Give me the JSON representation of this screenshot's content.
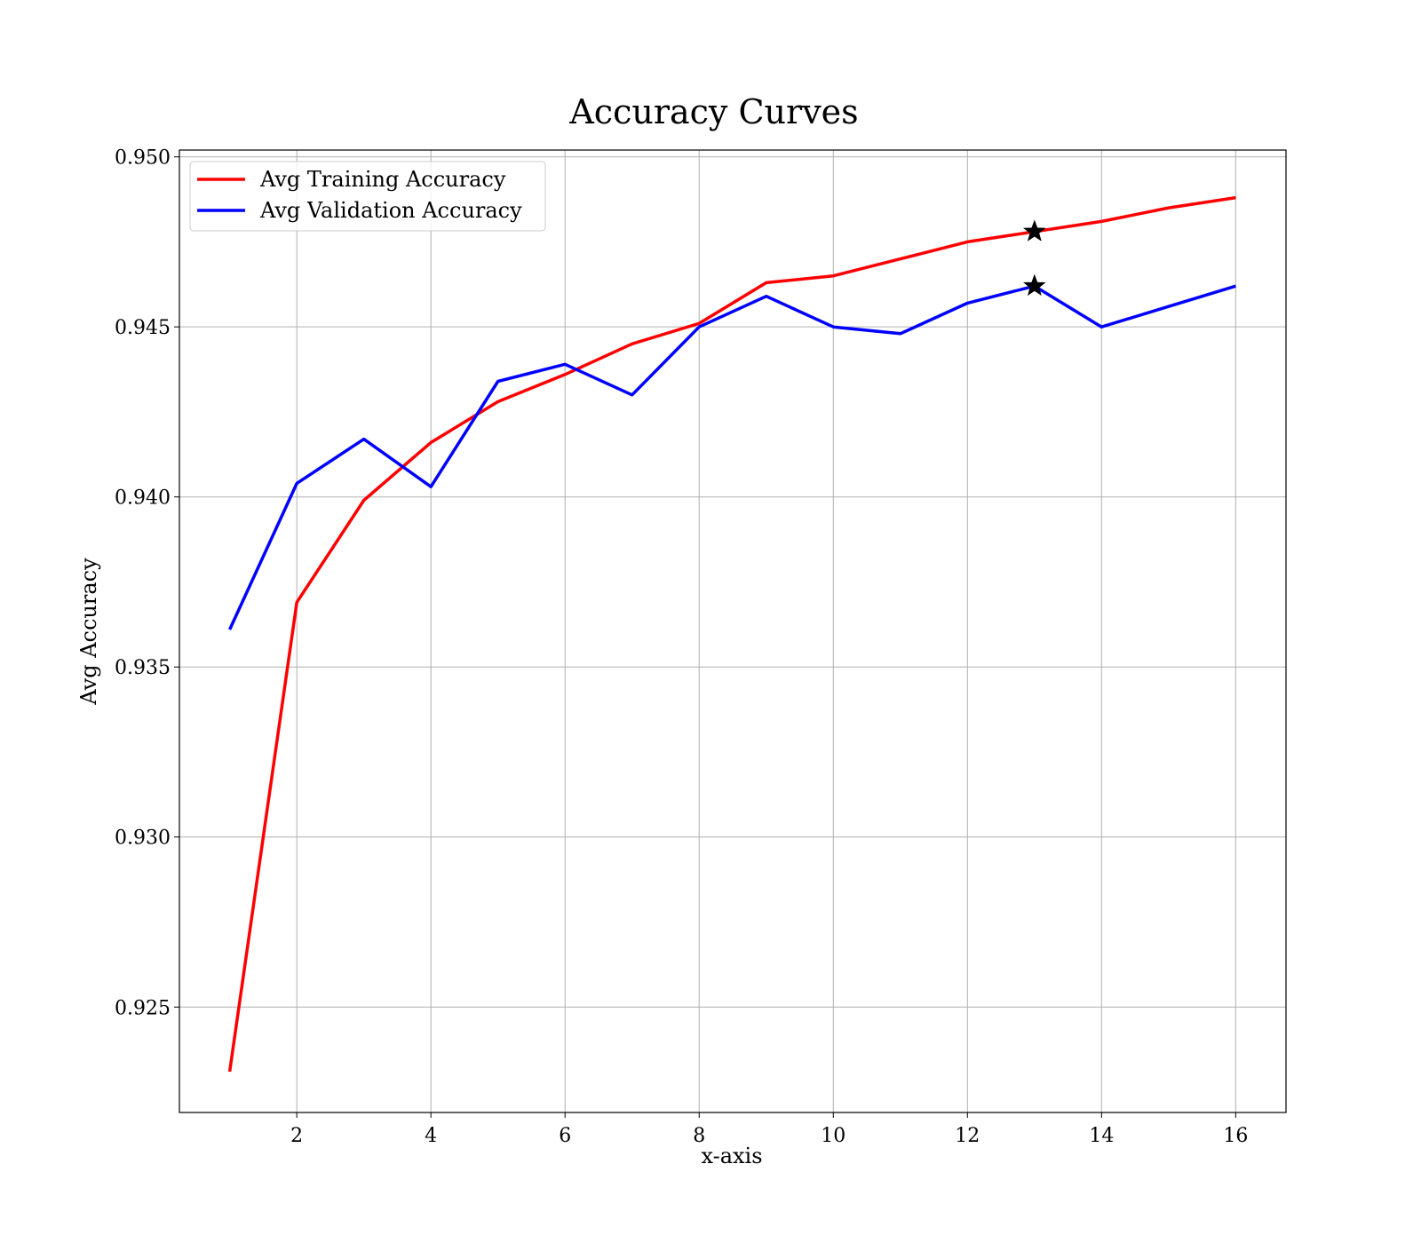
{
  "chart_data": {
    "type": "line",
    "title": "Accuracy Curves",
    "xlabel": "x-axis",
    "ylabel": "Avg Accuracy",
    "xlim": [
      0.25,
      16.75
    ],
    "ylim": [
      0.9219,
      0.9502
    ],
    "xticks": [
      2,
      4,
      6,
      8,
      10,
      12,
      14,
      16
    ],
    "xtick_labels": [
      "2",
      "4",
      "6",
      "8",
      "10",
      "12",
      "14",
      "16"
    ],
    "yticks": [
      0.925,
      0.93,
      0.935,
      0.94,
      0.945,
      0.95
    ],
    "ytick_labels": [
      "0.925",
      "0.930",
      "0.935",
      "0.940",
      "0.945",
      "0.950"
    ],
    "grid": true,
    "legend_position": "upper-left",
    "x": [
      1,
      2,
      3,
      4,
      5,
      6,
      7,
      8,
      9,
      10,
      11,
      12,
      13,
      14,
      15,
      16
    ],
    "series": [
      {
        "name": "Avg Training Accuracy",
        "color": "#ff0000",
        "values": [
          0.9231,
          0.9369,
          0.9399,
          0.9416,
          0.9428,
          0.9436,
          0.9445,
          0.9451,
          0.9463,
          0.9465,
          0.947,
          0.9475,
          0.9478,
          0.9481,
          0.9485,
          0.9488
        ]
      },
      {
        "name": "Avg Validation Accuracy",
        "color": "#0000ff",
        "values": [
          0.9361,
          0.9404,
          0.9417,
          0.9403,
          0.9434,
          0.9439,
          0.943,
          0.945,
          0.9459,
          0.945,
          0.9448,
          0.9457,
          0.9462,
          0.945,
          0.9456,
          0.9462
        ]
      }
    ],
    "markers": [
      {
        "series": "Avg Training Accuracy",
        "x": 13,
        "y": 0.9478,
        "symbol": "star",
        "color": "#000000"
      },
      {
        "series": "Avg Validation Accuracy",
        "x": 13,
        "y": 0.9462,
        "symbol": "star",
        "color": "#000000"
      }
    ]
  }
}
